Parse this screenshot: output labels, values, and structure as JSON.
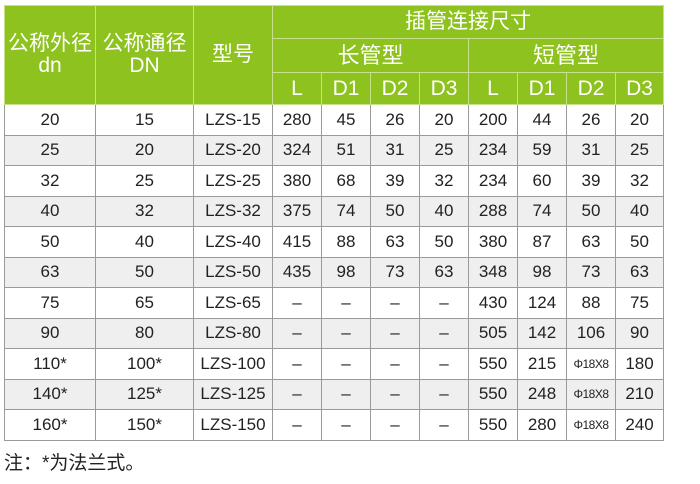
{
  "header": {
    "outer_dia": "公称外径",
    "outer_dia_sym": "dn",
    "nominal_dia": "公称通径",
    "nominal_dia_sym": "DN",
    "model": "型号",
    "socket_dims": "插管连接尺寸",
    "long_type": "长管型",
    "short_type": "短管型",
    "sub_cols": [
      "L",
      "D1",
      "D2",
      "D3",
      "L",
      "D1",
      "D2",
      "D3"
    ]
  },
  "colors": {
    "header_bg": "#8dc21f",
    "alt_row": "#efefef"
  },
  "rows": [
    [
      "20",
      "15",
      "LZS-15",
      "280",
      "45",
      "26",
      "20",
      "200",
      "44",
      "26",
      "20"
    ],
    [
      "25",
      "20",
      "LZS-20",
      "324",
      "51",
      "31",
      "25",
      "234",
      "59",
      "31",
      "25"
    ],
    [
      "32",
      "25",
      "LZS-25",
      "380",
      "68",
      "39",
      "32",
      "234",
      "60",
      "39",
      "32"
    ],
    [
      "40",
      "32",
      "LZS-32",
      "375",
      "74",
      "50",
      "40",
      "288",
      "74",
      "50",
      "40"
    ],
    [
      "50",
      "40",
      "LZS-40",
      "415",
      "88",
      "63",
      "50",
      "380",
      "87",
      "63",
      "50"
    ],
    [
      "63",
      "50",
      "LZS-50",
      "435",
      "98",
      "73",
      "63",
      "348",
      "98",
      "73",
      "63"
    ],
    [
      "75",
      "65",
      "LZS-65",
      "–",
      "–",
      "–",
      "–",
      "430",
      "124",
      "88",
      "75"
    ],
    [
      "90",
      "80",
      "LZS-80",
      "–",
      "–",
      "–",
      "–",
      "505",
      "142",
      "106",
      "90"
    ],
    [
      "110*",
      "100*",
      "LZS-100",
      "–",
      "–",
      "–",
      "–",
      "550",
      "215",
      "Φ18X8",
      "180"
    ],
    [
      "140*",
      "125*",
      "LZS-125",
      "–",
      "–",
      "–",
      "–",
      "550",
      "248",
      "Φ18X8",
      "210"
    ],
    [
      "160*",
      "150*",
      "LZS-150",
      "–",
      "–",
      "–",
      "–",
      "550",
      "280",
      "Φ18X8",
      "240"
    ]
  ],
  "note": "注：*为法兰式。"
}
